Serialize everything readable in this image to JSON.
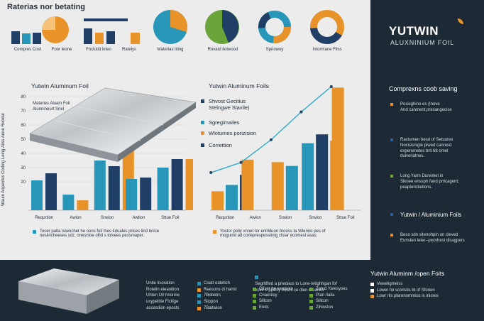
{
  "colors": {
    "orange": "#e8922a",
    "teal": "#2796b8",
    "navy": "#1f3f66",
    "green": "#6aa43a",
    "dark": "#1d2a35"
  },
  "header": {
    "title": "Raterias nor betating"
  },
  "mini_charts": [
    {
      "type": "bar",
      "label": "Compres Cost",
      "values": [
        10,
        8,
        8
      ]
    },
    {
      "type": "pie",
      "label": "Foor leone",
      "values": [
        60,
        40
      ]
    },
    {
      "type": "bar",
      "label": "Foclutld loteo",
      "values": [
        9,
        9,
        9
      ]
    },
    {
      "type": "bar",
      "label": "Ratelys",
      "values": [
        7
      ]
    },
    {
      "type": "pie",
      "label": "Materias liting",
      "values": [
        70,
        30
      ]
    },
    {
      "type": "pie",
      "label": "Rovatd liotwood",
      "values": [
        55,
        45
      ]
    },
    {
      "type": "donut",
      "label": "Spriowoy",
      "values": [
        35,
        40,
        25
      ]
    },
    {
      "type": "donut",
      "label": "Intormane Fliss",
      "values": [
        60,
        40
      ]
    }
  ],
  "left_panel": {
    "title": "Yutwin Aluminum Foil",
    "ylabel": "Wauin Anpenfes Coding Leing Aliss Anne Reodal",
    "foil_label": "Materies Aluain Foil\nAlunnineurt Sriel",
    "legend": "Tocer patla isiwochet he oons foil fnes lutuales prices lind bnice\nnesiiricheeses sdz, onesnioe ollid s tolvees pessmaper."
  },
  "right_panel": {
    "title": "Yutwin Aluminum Foils",
    "legend": "Yostor polly vnnet tor enlrlduon brooss ta Wlenno pes of\nmoguind ad corleprespessitnig clsiar ecomest asas."
  },
  "chart_data": [
    {
      "type": "bar",
      "title": "Yutwin Aluminum Foil",
      "categories": [
        "Requrtion",
        "Awion",
        "Srwion",
        "Awtion",
        "Sttue Foil"
      ],
      "ylim": [
        0,
        90
      ],
      "yticks": [
        20,
        30,
        40,
        50,
        60,
        70,
        80
      ],
      "series": [
        {
          "color": "#2796b8",
          "values": [
            21,
            11,
            35,
            22,
            30
          ]
        },
        {
          "color": "#1f3f66",
          "values": [
            26,
            0,
            31,
            23,
            36
          ]
        },
        {
          "color": "#e8922a",
          "values": [
            0,
            7,
            42,
            0,
            36
          ]
        }
      ]
    },
    {
      "type": "bar",
      "title": "Yutwin Aluminum Foils",
      "categories": [
        "Requrtion",
        "Awion",
        "Srwion",
        "Srwion",
        "Sttue Foil"
      ],
      "ylim": [
        0,
        100
      ],
      "series": [
        {
          "color": "#e8922a",
          "values": [
            15,
            40,
            38,
            0,
            0
          ]
        },
        {
          "color": "#2796b8",
          "values": [
            20,
            0,
            35,
            53,
            0
          ]
        },
        {
          "color": "#1f3f66",
          "values": [
            28,
            0,
            0,
            60,
            0
          ]
        },
        {
          "color": "#e8922a",
          "values": [
            0,
            0,
            0,
            55,
            97
          ]
        }
      ],
      "line": [
        32,
        40,
        58,
        80,
        100
      ],
      "callouts": [
        {
          "color": "#1f3f66",
          "text": "Shvost Gecitius\nStelngwe Slavile)"
        },
        {
          "color": "#2796b8",
          "text": "Sgregimailes"
        },
        {
          "color": "#e8922a",
          "text": "Wlotumes porizision"
        },
        {
          "color": "#1f3f66",
          "text": "Correttion"
        }
      ]
    }
  ],
  "sidebar": {
    "brand": "YUTWIN",
    "brand_sub": "ALUXNINIUM FOIL",
    "heading": "Comprexns coob saving",
    "items": [
      {
        "color": "#e8922a",
        "text": "Posisghino es (Inove\nAnd canment presangecise"
      },
      {
        "color": "#1f3f66",
        "text": "Ractumen besd of Setuures\nNocisisnigle piwed canresd\nexpenenetes brit 68 omel\ndulveriatnes."
      },
      {
        "color": "#6aa43a",
        "text": "Long Yarm Durwinet in\nSlknee enssph fand prricagent;\npeaptericlietions."
      },
      {
        "color": "#1f3f66",
        "text": "Yutwin / Aluminium Foils"
      },
      {
        "color": "#e8922a",
        "text": "Beso sdn sitenohpin on cleved\nEunsten leter--pecvhesi disagpers"
      }
    ]
  },
  "bottom": {
    "col1": [
      "Untie lisoration",
      "Rotelin eleanition",
      "Uhten Uir hnonne",
      "uxypelitie Ficilige",
      "accesdion eposts"
    ],
    "col2": [
      {
        "color": "#2796b8",
        "text": "Coatt eatetich"
      },
      {
        "color": "#e8922a",
        "text": "Reesons di harist"
      },
      {
        "color": "#2796b8",
        "text": "7Bobetrs"
      },
      {
        "color": "#2796b8",
        "text": "Siippon"
      },
      {
        "color": "#e8922a",
        "text": "7Baitwion"
      }
    ],
    "center_note": "Segrtifted a pnedaus to Lone-tetighhgan fof\nexcec o pparty srisos ce dlen meanes",
    "col3": [
      {
        "color": "#6aa43a",
        "text": "Oliser he seanves"
      },
      {
        "color": "#6aa43a",
        "text": "Cnaeresy"
      },
      {
        "color": "#6aa43a",
        "text": "Sillcon"
      },
      {
        "color": "#6aa43a",
        "text": "Ends"
      }
    ],
    "col4": [
      {
        "color": "#6aa43a",
        "text": "Zatud Yaresyses"
      },
      {
        "color": "#6aa43a",
        "text": "Plan /Ialia"
      },
      {
        "color": "#6aa43a",
        "text": "Sillcon"
      },
      {
        "color": "#6aa43a",
        "text": "Zihioston"
      }
    ],
    "right_title": "Yutwin Aluminm /open Foits",
    "right_items": [
      "Veweligmeiss",
      "Lower foi scoristis bt of Sfonen",
      "Lowr rlis plarenommios is iniores"
    ]
  }
}
